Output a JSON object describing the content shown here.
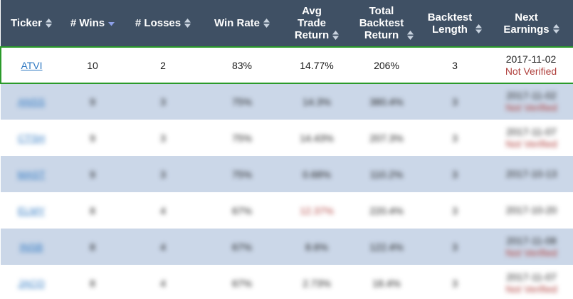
{
  "colors": {
    "header_bg": "#3f5064",
    "alt_row_bg": "#cbd7e8",
    "highlight_border": "#2a9a2a",
    "link": "#2e78c2",
    "not_verified": "#b0413e",
    "sort_active": "#8da0e8",
    "sort_inactive": "#c9d3df"
  },
  "columns": [
    {
      "label": "Ticker",
      "sort_icon": "sort-both-icon"
    },
    {
      "label": "# Wins",
      "sort_icon": "sort-desc-icon"
    },
    {
      "label": "# Losses",
      "sort_icon": "sort-both-icon"
    },
    {
      "label": "Win Rate",
      "sort_icon": "sort-both-icon"
    },
    {
      "label": "Avg Trade Return",
      "sort_icon": "sort-both-icon"
    },
    {
      "label": "Total Backtest Return",
      "sort_icon": "sort-both-icon"
    },
    {
      "label": "Backtest Length",
      "sort_icon": "sort-both-icon"
    },
    {
      "label": "Next Earnings",
      "sort_icon": "sort-both-icon"
    }
  ],
  "header_lines": {
    "c0": [
      "Ticker"
    ],
    "c1": [
      "# Wins"
    ],
    "c2": [
      "# Losses"
    ],
    "c3": [
      "Win Rate"
    ],
    "c4": [
      "Avg",
      "Trade",
      "Return"
    ],
    "c5": [
      "Total",
      "Backtest",
      "Return"
    ],
    "c6": [
      "Backtest",
      "Length"
    ],
    "c7": [
      "Next",
      "Earnings"
    ]
  },
  "rows": [
    {
      "ticker": "ATVI",
      "wins": "10",
      "losses": "2",
      "win_rate": "83%",
      "avg_return": "14.77%",
      "total_return": "206%",
      "length": "3",
      "earnings_date": "2017-11-02",
      "earnings_status": "Not Verified",
      "highlighted": true,
      "blurred": false
    },
    {
      "ticker": "ANSS",
      "wins": "9",
      "losses": "3",
      "win_rate": "75%",
      "avg_return": "14.3%",
      "total_return": "380.4%",
      "length": "3",
      "earnings_date": "2017-11-02",
      "earnings_status": "Not Verified",
      "blurred": true
    },
    {
      "ticker": "CTSH",
      "wins": "9",
      "losses": "3",
      "win_rate": "75%",
      "avg_return": "14.43%",
      "total_return": "207.3%",
      "length": "3",
      "earnings_date": "2017-11-07",
      "earnings_status": "Not Verified",
      "blurred": true
    },
    {
      "ticker": "MAST",
      "wins": "9",
      "losses": "3",
      "win_rate": "75%",
      "avg_return": "0.68%",
      "total_return": "110.2%",
      "length": "3",
      "earnings_date": "2017-10-13",
      "earnings_status": "",
      "blurred": true
    },
    {
      "ticker": "ELMY",
      "wins": "8",
      "losses": "4",
      "win_rate": "67%",
      "avg_return": "12.37%",
      "total_return": "220.4%",
      "length": "3",
      "earnings_date": "2017-10-20",
      "earnings_status": "",
      "avg_negative": true,
      "blurred": true
    },
    {
      "ticker": "INSB",
      "wins": "8",
      "losses": "4",
      "win_rate": "67%",
      "avg_return": "8.6%",
      "total_return": "122.4%",
      "length": "3",
      "earnings_date": "2017-11-08",
      "earnings_status": "Not Verified",
      "blurred": true
    },
    {
      "ticker": "JACQ",
      "wins": "8",
      "losses": "4",
      "win_rate": "67%",
      "avg_return": "2.73%",
      "total_return": "18.4%",
      "length": "3",
      "earnings_date": "2017-11-07",
      "earnings_status": "Not Verified",
      "blurred": true
    }
  ]
}
